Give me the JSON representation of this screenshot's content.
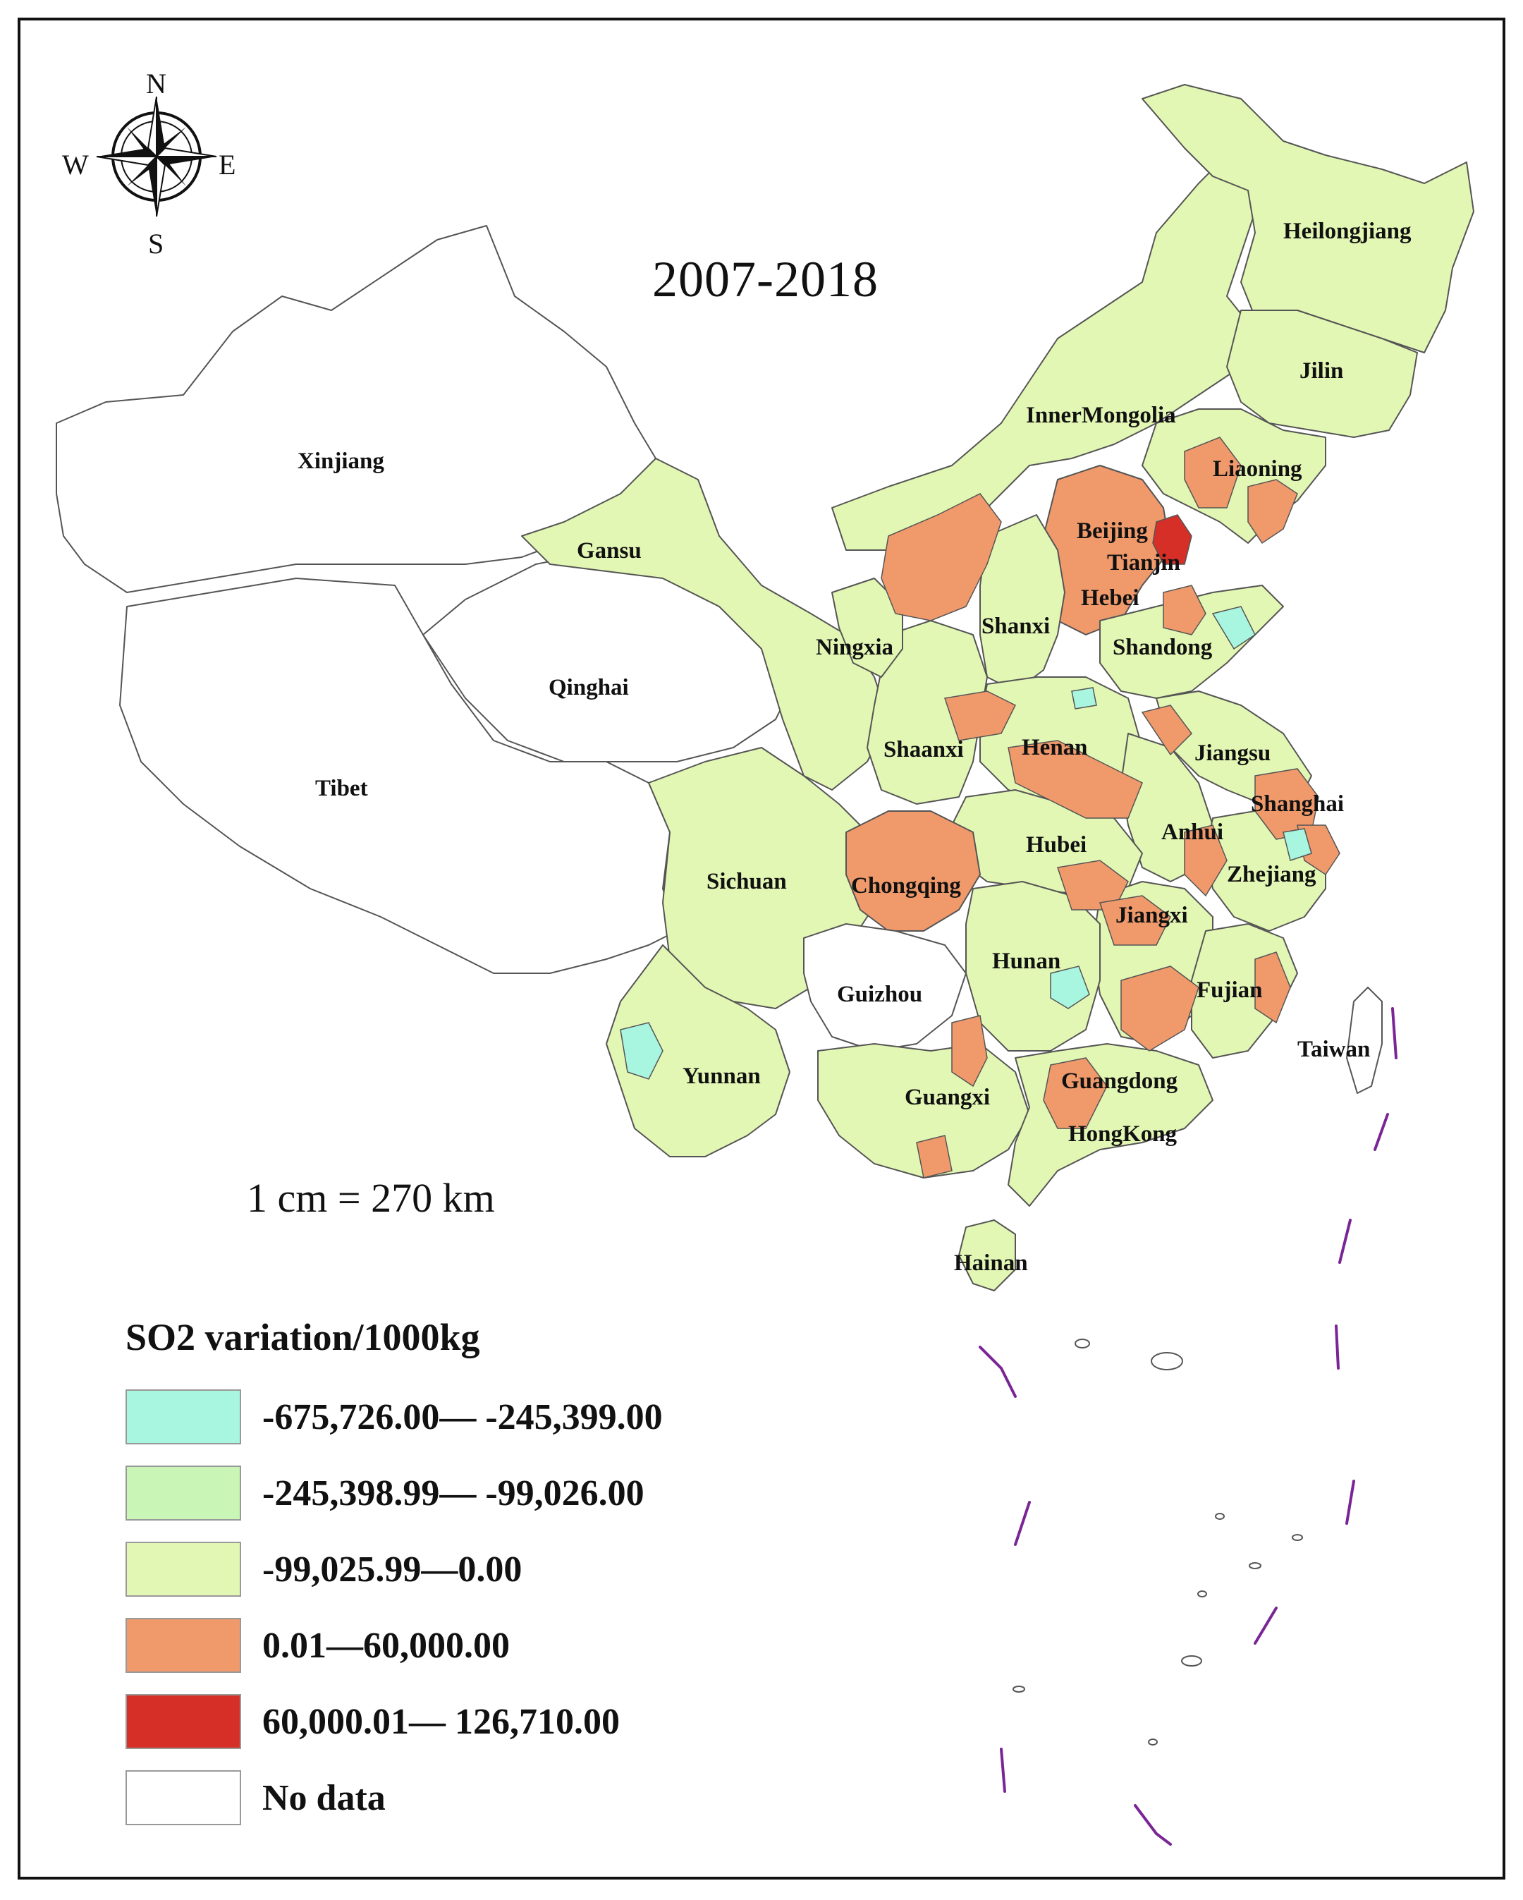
{
  "title": "2007-2018",
  "scale": "1 cm = 270 km",
  "compass": {
    "n": "N",
    "s": "S",
    "e": "E",
    "w": "W"
  },
  "legend": {
    "title": "SO2 variation/1000kg",
    "items": [
      {
        "label": "-675,726.00— -245,399.00",
        "color": "#a8f5e0"
      },
      {
        "label": "-245,398.99— -99,026.00",
        "color": "#c9f5b6"
      },
      {
        "label": "-99,025.99—0.00",
        "color": "#e3f7b4"
      },
      {
        "label": "0.01—60,000.00",
        "color": "#f09a6c"
      },
      {
        "label": "60,000.01— 126,710.00",
        "color": "#d62f27"
      },
      {
        "label": "No data",
        "color": "#ffffff"
      }
    ]
  },
  "provinces": {
    "heilongjiang": "Heilongjiang",
    "jilin": "Jilin",
    "inner_mongolia": "InnerMongolia",
    "liaoning": "Liaoning",
    "xinjiang": "Xinjiang",
    "gansu": "Gansu",
    "beijing": "Beijing",
    "tianjin": "Tianjin",
    "hebei": "Hebei",
    "ningxia": "Ningxia",
    "shanxi": "Shanxi",
    "shandong": "Shandong",
    "qinghai": "Qinghai",
    "tibet": "Tibet",
    "shaanxi": "Shaanxi",
    "henan": "Henan",
    "jiangsu": "Jiangsu",
    "shanghai": "Shanghai",
    "anhui": "Anhui",
    "hubei": "Hubei",
    "sichuan": "Sichuan",
    "chongqing": "Chongqing",
    "zhejiang": "Zhejiang",
    "jiangxi": "Jiangxi",
    "hunan": "Hunan",
    "guizhou": "Guizhou",
    "fujian": "Fujian",
    "taiwan": "Taiwan",
    "yunnan": "Yunnan",
    "guangdong": "Guangdong",
    "guangxi": "Guangxi",
    "hongkong": "HongKong",
    "hainan": "Hainan"
  }
}
